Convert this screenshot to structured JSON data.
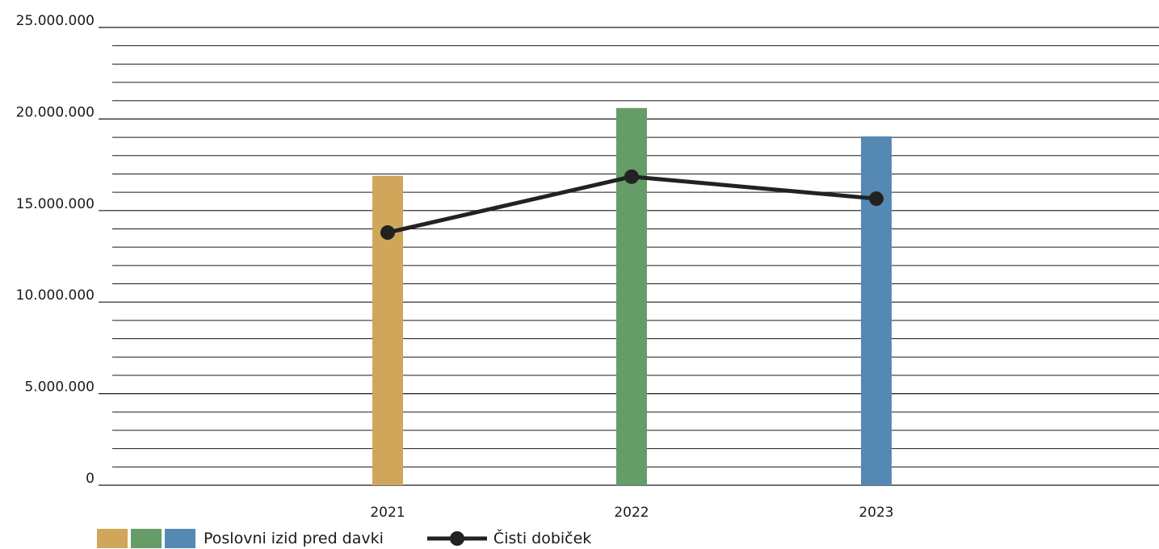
{
  "chart_data": {
    "type": "bar",
    "categories": [
      "2021",
      "2022",
      "2023"
    ],
    "series": [
      {
        "name": "Poslovni izid pred davki",
        "type": "bar",
        "values": [
          16900000,
          20600000,
          19050000
        ],
        "colors": [
          "#cfa65a",
          "#659c68",
          "#5589b4"
        ]
      },
      {
        "name": "Čisti dobiček",
        "type": "line",
        "values": [
          13800000,
          16850000,
          15650000
        ],
        "color": "#222222"
      }
    ],
    "yticks": [
      "0",
      "5.000.000",
      "10.000.000",
      "15.000.000",
      "20.000.000",
      "25.000.000"
    ],
    "ylim": [
      0,
      25000000
    ],
    "grid": true,
    "legend_position": "bottom-left"
  }
}
